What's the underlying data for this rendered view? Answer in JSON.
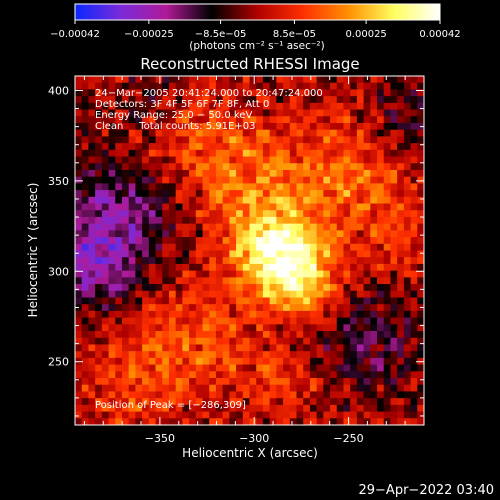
{
  "chart_data": {
    "type": "heatmap",
    "title": "Reconstructed RHESSI Image",
    "xlabel": "Heliocentric X (arcsec)",
    "ylabel": "Heliocentric Y (arcsec)",
    "xlim": [
      -395,
      -210
    ],
    "ylim": [
      215,
      408
    ],
    "x_ticks": [
      -350,
      -300,
      -250
    ],
    "x_tick_labels": [
      "−350",
      "−300",
      "−250"
    ],
    "y_ticks": [
      250,
      300,
      350,
      400
    ],
    "y_tick_labels": [
      "250",
      "300",
      "350",
      "400"
    ],
    "colorbar": {
      "min": -0.00042,
      "max": 0.00042,
      "ticks": [
        -0.00042,
        -0.00025,
        -8.5e-05,
        8.5e-05,
        0.00025,
        0.00042
      ],
      "tick_labels": [
        "−0.00042",
        "−0.00025",
        "−8.5e−05",
        "8.5e−05",
        "0.00025",
        "0.00042"
      ],
      "units": "(photons cm⁻² s⁻¹ asec⁻²)",
      "colors": [
        "#0a28ff",
        "#7a2ad8",
        "#b01a98",
        "#000000",
        "#b00000",
        "#ff3000",
        "#ff9000",
        "#ffff60",
        "#ffffff"
      ]
    },
    "annotations": [
      "24−Mar−2005 20:41:24.000 to 20:47:24.000",
      "Detectors: 3F 4F 5F 6F 7F 8F, Att 0",
      "Energy Range: 25.0 − 50.0 keV",
      "Clean     Total counts: 5.91E+03"
    ],
    "peak_label": "Position of Peak = [−286,309]",
    "peak": {
      "x": -286,
      "y": 309
    },
    "sources": [
      {
        "x": -286,
        "y": 309,
        "sigma": 17,
        "value": 0.0004
      },
      {
        "x": -270,
        "y": 287,
        "sigma": 12,
        "value": 0.00018
      },
      {
        "x": -300,
        "y": 350,
        "sigma": 22,
        "value": 0.00016
      },
      {
        "x": -250,
        "y": 355,
        "sigma": 20,
        "value": 0.00014
      },
      {
        "x": -335,
        "y": 372,
        "sigma": 18,
        "value": 0.0001
      },
      {
        "x": -330,
        "y": 262,
        "sigma": 22,
        "value": 0.00012
      },
      {
        "x": -365,
        "y": 240,
        "sigma": 18,
        "value": 0.0001
      },
      {
        "x": -285,
        "y": 240,
        "sigma": 16,
        "value": 8e-05
      },
      {
        "x": -225,
        "y": 320,
        "sigma": 18,
        "value": 9e-05
      },
      {
        "x": -375,
        "y": 330,
        "sigma": 22,
        "value": -0.00022
      },
      {
        "x": -385,
        "y": 300,
        "sigma": 15,
        "value": -0.00018
      },
      {
        "x": -240,
        "y": 265,
        "sigma": 22,
        "value": -0.00013
      },
      {
        "x": -218,
        "y": 385,
        "sigma": 16,
        "value": -0.0001
      },
      {
        "x": -355,
        "y": 395,
        "sigma": 12,
        "value": -7e-05
      }
    ],
    "grid": false
  },
  "footer": {
    "timestamp": "29−Apr−2022 03:40"
  }
}
